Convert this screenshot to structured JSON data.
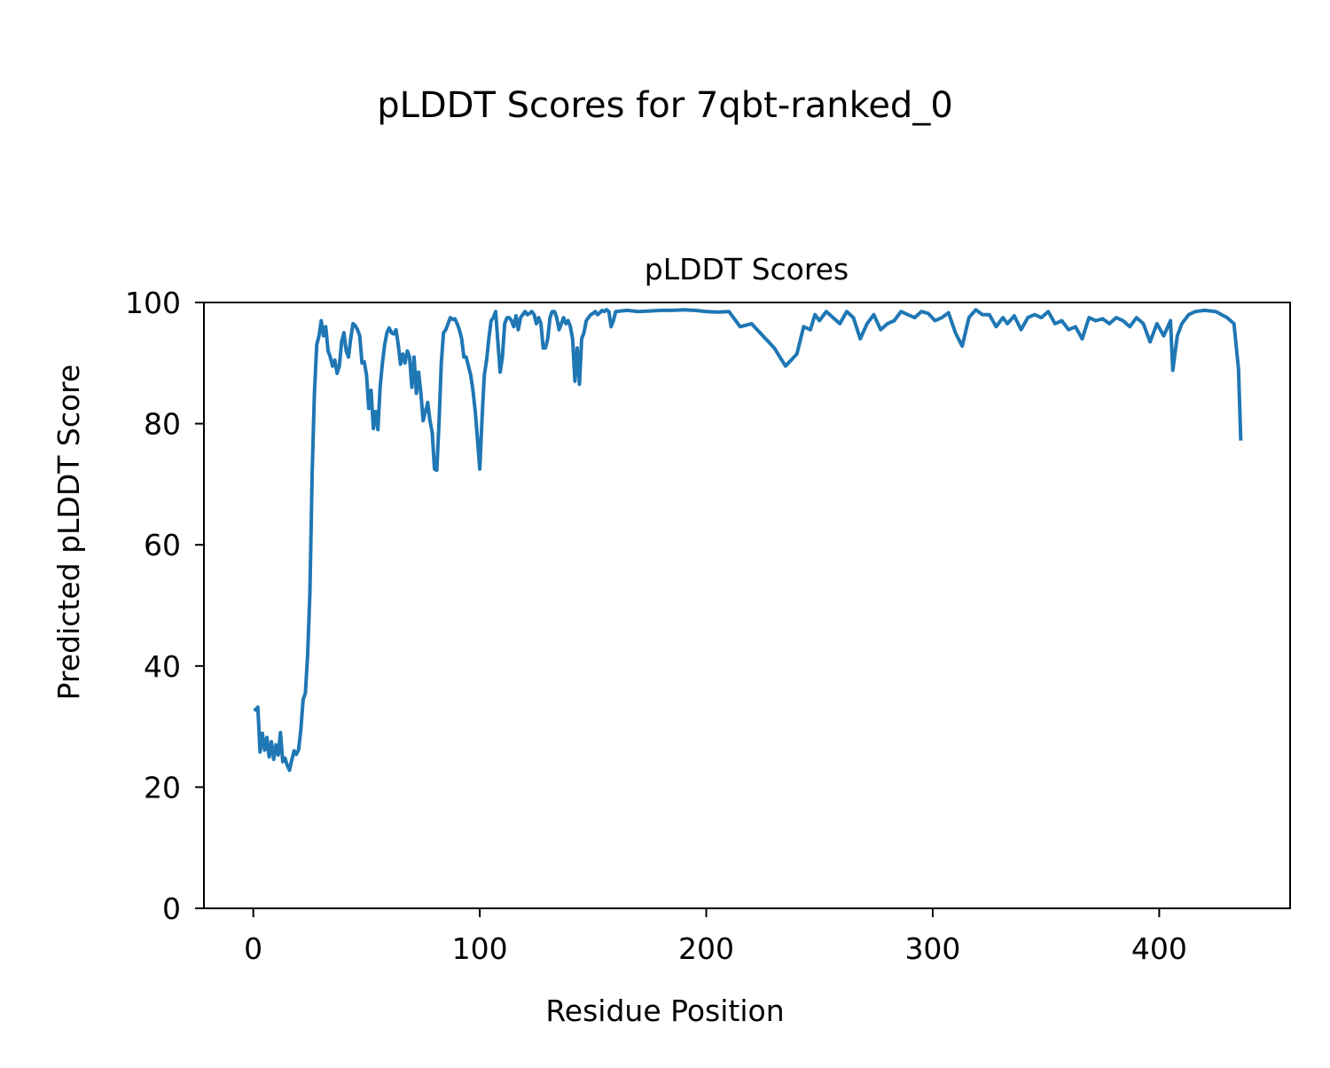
{
  "figure": {
    "suptitle": "pLDDT Scores for 7qbt-ranked_0"
  },
  "chart_data": {
    "type": "line",
    "title": "pLDDT Scores",
    "xlabel": "Residue Position",
    "ylabel": "Predicted pLDDT Score",
    "xlim": [
      -21.8,
      457.8
    ],
    "ylim": [
      0,
      100
    ],
    "xticks": [
      0,
      100,
      200,
      300,
      400
    ],
    "yticks": [
      0,
      20,
      40,
      60,
      80,
      100
    ],
    "grid": false,
    "line_color": "#1f77b4",
    "series": [
      {
        "x": [
          1,
          2,
          3,
          4,
          5,
          6,
          7,
          8,
          9,
          10,
          11,
          12,
          13,
          14,
          15,
          16,
          17,
          18,
          19,
          20,
          21,
          22,
          23,
          24,
          25,
          26,
          27,
          28,
          29,
          30,
          31,
          32,
          33,
          34,
          35,
          36,
          37,
          38,
          39,
          40,
          41,
          42,
          43,
          44,
          45,
          46,
          47,
          48,
          49,
          50,
          51,
          52,
          53,
          54,
          55,
          56,
          57,
          58,
          59,
          60,
          61,
          62,
          63,
          64,
          65,
          66,
          67,
          68,
          69,
          70,
          71,
          72,
          73,
          74,
          75,
          76,
          77,
          78,
          79,
          80,
          81,
          82,
          83,
          84,
          85,
          86,
          87,
          88,
          89,
          90,
          91,
          92,
          93,
          94,
          95,
          96,
          97,
          98,
          99,
          100,
          101,
          102,
          103,
          104,
          105,
          106,
          107,
          108,
          109,
          110,
          111,
          112,
          113,
          114,
          115,
          116,
          117,
          118,
          119,
          120,
          121,
          122,
          123,
          124,
          125,
          126,
          127,
          128,
          129,
          130,
          131,
          132,
          133,
          134,
          135,
          136,
          137,
          138,
          139,
          140,
          141,
          142,
          143,
          144,
          145,
          146,
          147,
          148,
          149,
          150,
          151,
          152,
          153,
          154,
          155,
          156,
          157,
          158,
          159,
          160,
          165,
          170,
          175,
          180,
          185,
          190,
          195,
          200,
          205,
          210,
          215,
          220,
          225,
          230,
          235,
          240,
          243,
          246,
          248,
          250,
          253,
          256,
          259,
          262,
          265,
          268,
          271,
          274,
          277,
          280,
          283,
          286,
          289,
          292,
          295,
          298,
          301,
          304,
          307,
          310,
          313,
          316,
          319,
          322,
          325,
          328,
          331,
          333,
          336,
          339,
          342,
          345,
          348,
          351,
          354,
          357,
          360,
          363,
          366,
          369,
          372,
          375,
          378,
          381,
          384,
          387,
          390,
          393,
          396,
          399,
          402,
          405,
          406,
          408,
          410,
          413,
          416,
          420,
          425,
          430,
          433,
          435,
          436
        ],
        "y": [
          32.8,
          33.2,
          25.8,
          28.9,
          26.1,
          28.2,
          25.0,
          27.5,
          24.6,
          27.0,
          25.3,
          29.0,
          24.2,
          24.8,
          23.6,
          22.8,
          24.5,
          26.0,
          25.4,
          26.2,
          29.5,
          34.5,
          35.5,
          42.0,
          52.0,
          72.0,
          85.0,
          93.0,
          94.5,
          97.0,
          94.5,
          96.0,
          92.0,
          91.0,
          89.5,
          90.5,
          88.3,
          89.5,
          93.5,
          95.0,
          92.0,
          91.0,
          94.0,
          96.5,
          96.2,
          95.5,
          94.5,
          90.0,
          90.2,
          88.0,
          82.5,
          85.5,
          79.2,
          82.0,
          79.0,
          86.0,
          90.0,
          93.0,
          95.0,
          95.8,
          95.0,
          94.8,
          95.5,
          93.0,
          89.8,
          91.5,
          90.0,
          92.0,
          91.0,
          86.0,
          91.0,
          85.0,
          88.5,
          85.0,
          80.5,
          82.0,
          83.5,
          80.5,
          78.5,
          72.5,
          72.3,
          80.0,
          90.0,
          95.0,
          95.5,
          96.5,
          97.5,
          97.2,
          97.3,
          96.5,
          95.5,
          94.0,
          91.0,
          91.0,
          89.5,
          88.0,
          85.5,
          82.0,
          77.5,
          72.5,
          81.0,
          88.0,
          90.5,
          94.0,
          97.0,
          97.5,
          98.5,
          93.5,
          88.5,
          91.0,
          96.5,
          97.5,
          97.5,
          97.0,
          96.0,
          97.8,
          95.5,
          97.5,
          98.0,
          98.5,
          98.0,
          98.2,
          98.5,
          98.0,
          96.5,
          97.5,
          96.5,
          92.5,
          92.5,
          94.0,
          97.5,
          98.5,
          98.5,
          97.5,
          95.5,
          96.5,
          97.5,
          96.5,
          97.0,
          96.0,
          94.0,
          87.0,
          92.5,
          86.5,
          94.0,
          95.0,
          97.0,
          97.5,
          98.0,
          98.2,
          98.5,
          98.0,
          98.3,
          98.7,
          98.5,
          98.8,
          98.5,
          96.0,
          97.0,
          98.5,
          98.7,
          98.5,
          98.6,
          98.7,
          98.7,
          98.8,
          98.7,
          98.5,
          98.4,
          98.5,
          96.0,
          96.5,
          94.5,
          92.5,
          89.5,
          91.5,
          96.0,
          95.5,
          98.0,
          97.0,
          98.5,
          97.5,
          96.5,
          98.5,
          97.5,
          94.0,
          96.5,
          98.0,
          95.5,
          96.5,
          97.0,
          98.5,
          98.0,
          97.5,
          98.5,
          98.2,
          97.0,
          97.5,
          98.3,
          95.0,
          92.8,
          97.5,
          98.8,
          98.0,
          98.0,
          96.0,
          97.5,
          96.5,
          97.8,
          95.5,
          97.5,
          98.0,
          97.5,
          98.5,
          96.5,
          97.0,
          95.5,
          96.0,
          94.0,
          97.5,
          97.0,
          97.3,
          96.5,
          97.5,
          97.0,
          96.0,
          97.5,
          96.5,
          93.5,
          96.5,
          94.5,
          97.0,
          88.8,
          94.5,
          96.5,
          98.0,
          98.5,
          98.7,
          98.5,
          97.5,
          96.5,
          89.0,
          77.5
        ]
      }
    ]
  }
}
